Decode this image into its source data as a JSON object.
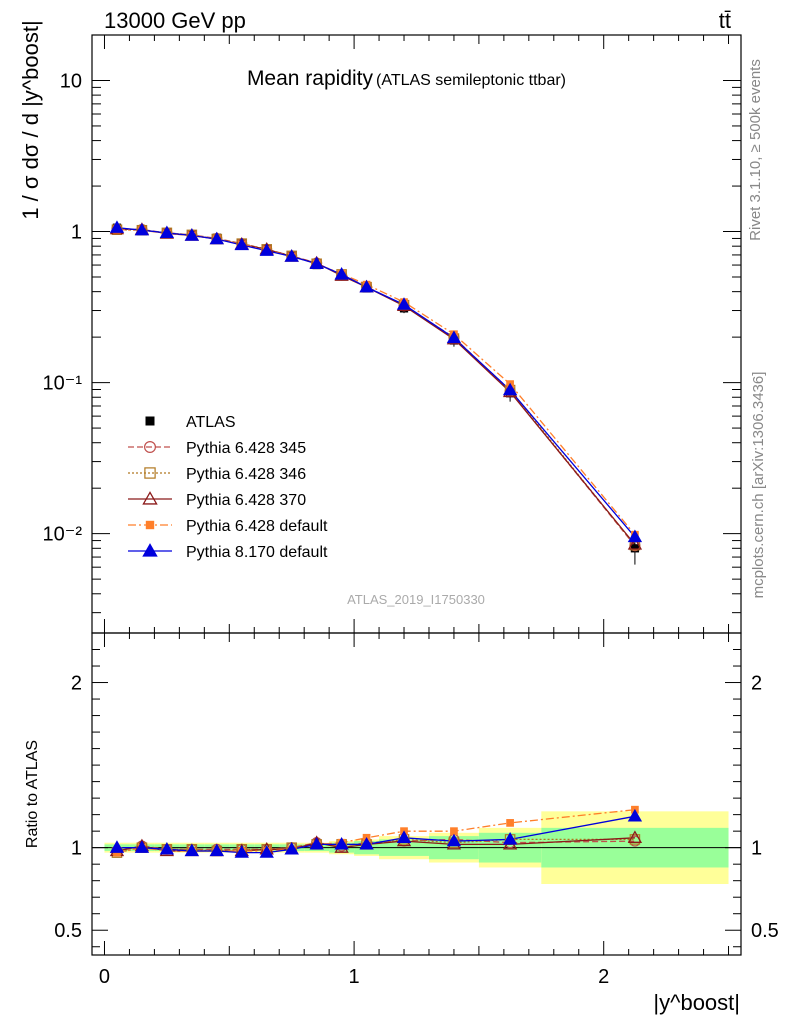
{
  "header": {
    "energy": "13000 GeV pp",
    "process": "tt̄",
    "side_right_top": "Rivet 3.1.10, ≥ 500k events",
    "side_right_bottom": "mcplots.cern.ch [arXiv:1306.3436]",
    "analysis_id": "ATLAS_2019_I1750330"
  },
  "chart_data": {
    "type": "line",
    "title": "Mean rapidity",
    "subtitle": "(ATLAS semileptonic ttbar)",
    "ylabel": "1 / σ dσ / d |y^boost|",
    "xlabel": "|y^boost|",
    "ratio_ylabel": "Ratio to ATLAS",
    "xlim": [
      -0.05,
      2.55
    ],
    "main_ylim": [
      0.0022,
      20
    ],
    "main_log_scale": true,
    "ratio_ylim": [
      0.35,
      2.3
    ],
    "main_ytick_labels": [
      "10⁻²",
      "10⁻¹",
      "1",
      "10"
    ],
    "ratio_ytick_labels": [
      "0.5",
      "1",
      "2"
    ],
    "xtick_labels": [
      "0",
      "1",
      "2"
    ],
    "legend_placement": "lower-left",
    "bins": [
      [
        0.0,
        0.1
      ],
      [
        0.1,
        0.2
      ],
      [
        0.2,
        0.3
      ],
      [
        0.3,
        0.4
      ],
      [
        0.4,
        0.5
      ],
      [
        0.5,
        0.6
      ],
      [
        0.6,
        0.7
      ],
      [
        0.7,
        0.8
      ],
      [
        0.8,
        0.9
      ],
      [
        0.9,
        1.0
      ],
      [
        1.0,
        1.1
      ],
      [
        1.1,
        1.3
      ],
      [
        1.3,
        1.5
      ],
      [
        1.5,
        1.75
      ],
      [
        1.75,
        2.5
      ]
    ],
    "x": [
      0.05,
      0.15,
      0.25,
      0.35,
      0.45,
      0.55,
      0.65,
      0.75,
      0.85,
      0.95,
      1.05,
      1.2,
      1.4,
      1.625,
      2.125
    ],
    "data": {
      "name": "ATLAS",
      "values": [
        1.06,
        1.02,
        0.99,
        0.96,
        0.91,
        0.84,
        0.77,
        0.69,
        0.6,
        0.51,
        0.42,
        0.31,
        0.19,
        0.085,
        0.008
      ],
      "stat_band": [
        0.02,
        0.02,
        0.02,
        0.02,
        0.02,
        0.02,
        0.02,
        0.02,
        0.02,
        0.03,
        0.04,
        0.05,
        0.07,
        0.09,
        0.12
      ],
      "total_band": [
        0.03,
        0.03,
        0.03,
        0.03,
        0.03,
        0.03,
        0.03,
        0.03,
        0.03,
        0.04,
        0.05,
        0.07,
        0.09,
        0.12,
        0.22
      ]
    },
    "series": [
      {
        "name": "Pythia 6.428 345",
        "color": "#c0504d",
        "marker": "circle-open",
        "dash": "dashed",
        "ratio": [
          0.98,
          1.01,
          0.99,
          0.99,
          0.99,
          0.99,
          0.99,
          1.0,
          1.03,
          1.01,
          1.03,
          1.04,
          1.05,
          1.03,
          1.04
        ]
      },
      {
        "name": "Pythia 6.428 346",
        "color": "#b07820",
        "marker": "square-open",
        "dash": "dotted",
        "ratio": [
          0.97,
          1.0,
          0.99,
          0.99,
          0.98,
          0.99,
          0.99,
          1.0,
          1.02,
          1.02,
          1.02,
          1.05,
          1.03,
          1.05,
          1.05
        ]
      },
      {
        "name": "Pythia 6.428 370",
        "color": "#8b1a1a",
        "marker": "triangle-open",
        "dash": "solid",
        "ratio": [
          0.98,
          1.01,
          0.98,
          0.98,
          0.98,
          0.98,
          0.99,
          0.99,
          1.03,
          1.0,
          1.02,
          1.04,
          1.02,
          1.02,
          1.06
        ]
      },
      {
        "name": "Pythia 6.428 default",
        "color": "#ff7f2a",
        "marker": "square-filled",
        "dash": "dashdot",
        "ratio": [
          0.97,
          1.0,
          0.98,
          0.98,
          0.98,
          0.98,
          0.98,
          0.99,
          1.02,
          1.03,
          1.06,
          1.1,
          1.1,
          1.15,
          1.23
        ]
      },
      {
        "name": "Pythia 8.170 default",
        "color": "#0000dd",
        "marker": "triangle-filled",
        "dash": "solid",
        "ratio": [
          1.0,
          1.0,
          0.99,
          0.98,
          0.98,
          0.97,
          0.97,
          0.99,
          1.02,
          1.02,
          1.02,
          1.06,
          1.04,
          1.05,
          1.19
        ]
      }
    ]
  }
}
